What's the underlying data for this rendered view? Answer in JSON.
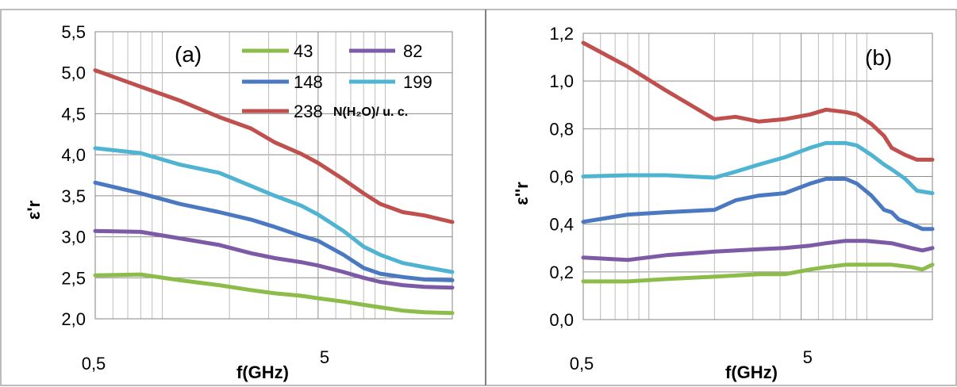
{
  "chart_data": [
    {
      "type": "line",
      "panel_label": "(a)",
      "xlabel": "f(GHz)",
      "ylabel": "ε'r",
      "x_scale": "log",
      "xlim": [
        0.5,
        20
      ],
      "ylim": [
        2.0,
        5.5
      ],
      "x_tick_labels": [
        {
          "value": 0.5,
          "label": "0,5"
        },
        {
          "value": 5,
          "label": "5"
        }
      ],
      "y_ticks": [
        2.0,
        2.5,
        3.0,
        3.5,
        4.0,
        4.5,
        5.0,
        5.5
      ],
      "y_tick_labels": [
        "2,0",
        "2,5",
        "3,0",
        "3,5",
        "4,0",
        "4,5",
        "5,0",
        "5,5"
      ],
      "grid": true,
      "legend_placement": "top-right",
      "legend_unit_label": "N(H₂O)/ u. c.",
      "series": [
        {
          "name": "43",
          "color": "#8cbd4a",
          "points": [
            [
              0.5,
              2.53
            ],
            [
              0.8,
              2.54
            ],
            [
              1.2,
              2.47
            ],
            [
              1.8,
              2.41
            ],
            [
              2.5,
              2.35
            ],
            [
              3.2,
              2.31
            ],
            [
              4.2,
              2.28
            ],
            [
              5,
              2.25
            ],
            [
              6.5,
              2.21
            ],
            [
              8,
              2.17
            ],
            [
              9.5,
              2.14
            ],
            [
              12,
              2.1
            ],
            [
              15,
              2.08
            ],
            [
              20,
              2.07
            ]
          ]
        },
        {
          "name": "82",
          "color": "#7d5aa6",
          "points": [
            [
              0.5,
              3.07
            ],
            [
              0.8,
              3.06
            ],
            [
              1.2,
              2.98
            ],
            [
              1.8,
              2.9
            ],
            [
              2.5,
              2.8
            ],
            [
              3.2,
              2.74
            ],
            [
              4.2,
              2.69
            ],
            [
              5,
              2.65
            ],
            [
              6.5,
              2.57
            ],
            [
              8,
              2.5
            ],
            [
              9.5,
              2.45
            ],
            [
              12,
              2.41
            ],
            [
              15,
              2.39
            ],
            [
              20,
              2.38
            ]
          ]
        },
        {
          "name": "148",
          "color": "#4b79c1",
          "points": [
            [
              0.5,
              3.66
            ],
            [
              0.8,
              3.53
            ],
            [
              1.2,
              3.4
            ],
            [
              1.8,
              3.3
            ],
            [
              2.5,
              3.21
            ],
            [
              3.2,
              3.12
            ],
            [
              4.2,
              3.01
            ],
            [
              5,
              2.95
            ],
            [
              6.5,
              2.78
            ],
            [
              8,
              2.62
            ],
            [
              9.5,
              2.55
            ],
            [
              12,
              2.51
            ],
            [
              15,
              2.48
            ],
            [
              20,
              2.47
            ]
          ]
        },
        {
          "name": "199",
          "color": "#4fb3d2",
          "points": [
            [
              0.5,
              4.08
            ],
            [
              0.8,
              4.02
            ],
            [
              1.2,
              3.88
            ],
            [
              1.8,
              3.78
            ],
            [
              2.5,
              3.62
            ],
            [
              3.2,
              3.5
            ],
            [
              4.2,
              3.38
            ],
            [
              5,
              3.27
            ],
            [
              6.5,
              3.07
            ],
            [
              8,
              2.88
            ],
            [
              9.5,
              2.78
            ],
            [
              12,
              2.68
            ],
            [
              15,
              2.63
            ],
            [
              20,
              2.57
            ]
          ]
        },
        {
          "name": "238",
          "color": "#c0504d",
          "points": [
            [
              0.5,
              5.03
            ],
            [
              0.8,
              4.83
            ],
            [
              1.2,
              4.66
            ],
            [
              1.8,
              4.46
            ],
            [
              2.5,
              4.32
            ],
            [
              3.2,
              4.15
            ],
            [
              4.2,
              4.01
            ],
            [
              5,
              3.9
            ],
            [
              6.5,
              3.7
            ],
            [
              8,
              3.53
            ],
            [
              9.5,
              3.4
            ],
            [
              12,
              3.3
            ],
            [
              15,
              3.26
            ],
            [
              20,
              3.18
            ]
          ]
        }
      ]
    },
    {
      "type": "line",
      "panel_label": "(b)",
      "xlabel": "f(GHz)",
      "ylabel": "ε''r",
      "x_scale": "log",
      "xlim": [
        0.5,
        20
      ],
      "ylim": [
        0.0,
        1.2
      ],
      "x_tick_labels": [
        {
          "value": 0.5,
          "label": "0,5"
        },
        {
          "value": 5,
          "label": "5"
        }
      ],
      "y_ticks": [
        0.0,
        0.2,
        0.4,
        0.6,
        0.8,
        1.0,
        1.2
      ],
      "y_tick_labels": [
        "0,0",
        "0,2",
        "0,4",
        "0,6",
        "0,8",
        "1,0",
        "1,2"
      ],
      "grid": true,
      "series": [
        {
          "name": "43",
          "color": "#8cbd4a",
          "points": [
            [
              0.5,
              0.16
            ],
            [
              0.8,
              0.16
            ],
            [
              1.2,
              0.17
            ],
            [
              2,
              0.18
            ],
            [
              3.2,
              0.19
            ],
            [
              4.2,
              0.19
            ],
            [
              5.5,
              0.21
            ],
            [
              6.5,
              0.22
            ],
            [
              8,
              0.23
            ],
            [
              10,
              0.23
            ],
            [
              13,
              0.23
            ],
            [
              16,
              0.22
            ],
            [
              18,
              0.21
            ],
            [
              20,
              0.23
            ]
          ]
        },
        {
          "name": "82",
          "color": "#7d5aa6",
          "points": [
            [
              0.5,
              0.26
            ],
            [
              0.8,
              0.25
            ],
            [
              1.2,
              0.27
            ],
            [
              2,
              0.285
            ],
            [
              3.2,
              0.295
            ],
            [
              4.2,
              0.3
            ],
            [
              5.5,
              0.31
            ],
            [
              6.5,
              0.32
            ],
            [
              8,
              0.33
            ],
            [
              10,
              0.33
            ],
            [
              13,
              0.32
            ],
            [
              16,
              0.3
            ],
            [
              18,
              0.29
            ],
            [
              20,
              0.3
            ]
          ]
        },
        {
          "name": "148",
          "color": "#4b79c1",
          "points": [
            [
              0.5,
              0.41
            ],
            [
              0.8,
              0.44
            ],
            [
              1.2,
              0.45
            ],
            [
              2,
              0.46
            ],
            [
              2.5,
              0.5
            ],
            [
              3.2,
              0.52
            ],
            [
              4.2,
              0.53
            ],
            [
              5.5,
              0.57
            ],
            [
              6.5,
              0.59
            ],
            [
              8,
              0.59
            ],
            [
              9,
              0.57
            ],
            [
              10.5,
              0.52
            ],
            [
              12,
              0.46
            ],
            [
              13,
              0.45
            ],
            [
              14,
              0.42
            ],
            [
              16,
              0.4
            ],
            [
              18,
              0.38
            ],
            [
              20,
              0.38
            ]
          ]
        },
        {
          "name": "199",
          "color": "#4fb3d2",
          "points": [
            [
              0.5,
              0.6
            ],
            [
              0.8,
              0.605
            ],
            [
              1.2,
              0.605
            ],
            [
              2,
              0.595
            ],
            [
              2.5,
              0.62
            ],
            [
              3.2,
              0.65
            ],
            [
              4.2,
              0.68
            ],
            [
              5.5,
              0.72
            ],
            [
              6.5,
              0.74
            ],
            [
              8,
              0.74
            ],
            [
              9,
              0.73
            ],
            [
              10.5,
              0.69
            ],
            [
              12,
              0.65
            ],
            [
              13,
              0.63
            ],
            [
              15,
              0.59
            ],
            [
              17,
              0.54
            ],
            [
              20,
              0.53
            ]
          ]
        },
        {
          "name": "238",
          "color": "#c0504d",
          "points": [
            [
              0.5,
              1.16
            ],
            [
              0.8,
              1.06
            ],
            [
              1.2,
              0.96
            ],
            [
              2,
              0.84
            ],
            [
              2.5,
              0.85
            ],
            [
              3.2,
              0.83
            ],
            [
              4.2,
              0.84
            ],
            [
              5.5,
              0.86
            ],
            [
              6.5,
              0.88
            ],
            [
              8,
              0.87
            ],
            [
              9,
              0.86
            ],
            [
              10.5,
              0.82
            ],
            [
              12,
              0.77
            ],
            [
              13,
              0.72
            ],
            [
              15,
              0.69
            ],
            [
              17,
              0.67
            ],
            [
              20,
              0.67
            ]
          ]
        }
      ]
    }
  ]
}
